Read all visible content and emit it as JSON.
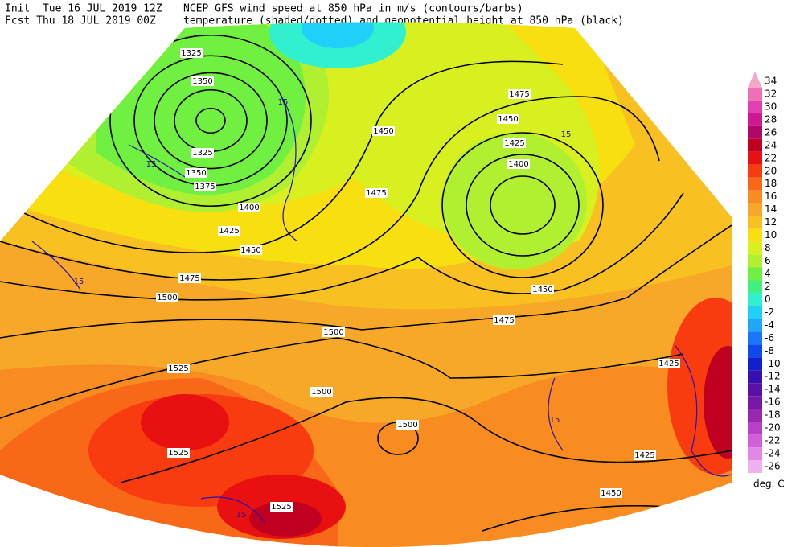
{
  "header": {
    "init": "Init  Tue 16 JUL 2019 12Z",
    "fcst": "Fcst Thu 18 JUL 2019 00Z",
    "title_line1": "NCEP GFS wind speed at 850 hPa in m/s (contours/barbs)",
    "title_line2": "temperature (shaded/dotted) and geopotential height at 850 hPa (black)"
  },
  "colorbar": {
    "levels": [
      34,
      32,
      30,
      28,
      26,
      24,
      22,
      20,
      18,
      16,
      14,
      12,
      10,
      8,
      6,
      4,
      2,
      0,
      -2,
      -4,
      -6,
      -8,
      -10,
      -12,
      -14,
      -16,
      -18,
      -20,
      -22,
      -24,
      -26
    ],
    "colors": [
      "#f4a8c8",
      "#f070b8",
      "#e040b0",
      "#d01890",
      "#b00868",
      "#c00020",
      "#e81010",
      "#f83c10",
      "#f86818",
      "#f88c20",
      "#f8a828",
      "#f8c020",
      "#f8e010",
      "#d8f020",
      "#b0f030",
      "#70f040",
      "#40f080",
      "#30f0d0",
      "#20d0f8",
      "#20a8f8",
      "#1878f8",
      "#1048f0",
      "#1020d0",
      "#3810b0",
      "#5810a8",
      "#7818a8",
      "#9828b0",
      "#b840c8",
      "#d060d8",
      "#e088e8",
      "#f0b0f0"
    ],
    "unit": "deg. C"
  },
  "height_labels": [
    "1325",
    "1350",
    "1325",
    "1350",
    "1375",
    "1400",
    "1425",
    "1450",
    "1475",
    "1500",
    "1500",
    "1525",
    "1525",
    "1500",
    "1500",
    "1525",
    "1475",
    "1450",
    "1475",
    "1450",
    "1425",
    "1400",
    "1450",
    "1475",
    "1425",
    "1425",
    "1450"
  ],
  "wind_labels": [
    "15",
    "15",
    "15",
    "15",
    "15",
    "15"
  ]
}
